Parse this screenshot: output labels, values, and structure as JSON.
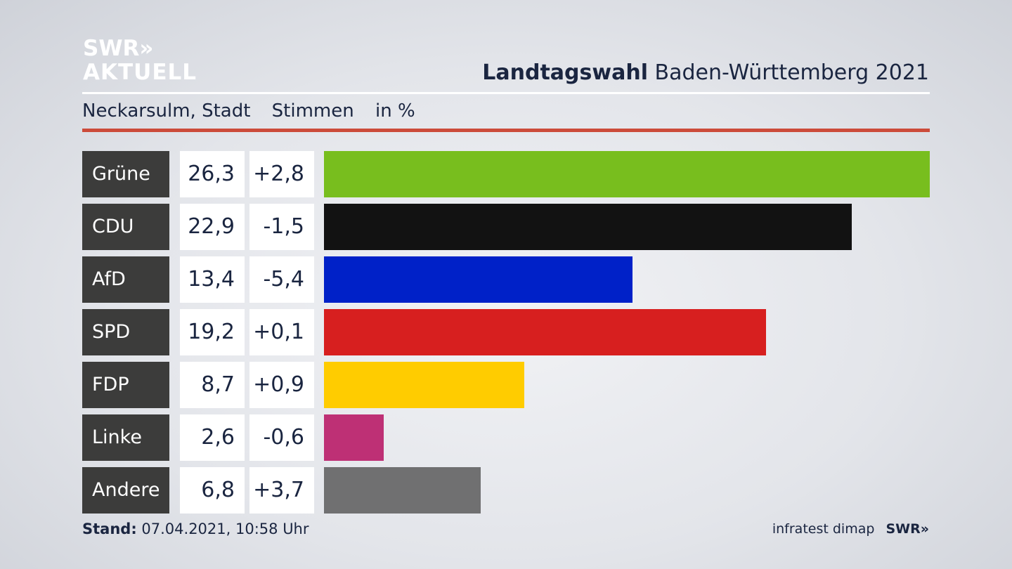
{
  "logo": {
    "line1": "SWR»",
    "line2": "AKTUELL"
  },
  "header": {
    "title_bold": "Landtagswahl",
    "title_rest": "Baden-Württemberg 2021"
  },
  "subtitle": {
    "place": "Neckarsulm, Stadt",
    "measure": "Stimmen",
    "unit": "in %"
  },
  "colors": {
    "accent_rule": "#cc4b3a",
    "label_bg": "#3c3c3b"
  },
  "chart_data": {
    "type": "bar",
    "orientation": "horizontal",
    "title": "Landtagswahl Baden-Württemberg 2021",
    "subtitle": "Neckarsulm, Stadt Stimmen in %",
    "categories": [
      "Grüne",
      "CDU",
      "AfD",
      "SPD",
      "FDP",
      "Linke",
      "Andere"
    ],
    "values": [
      26.3,
      22.9,
      13.4,
      19.2,
      8.7,
      2.6,
      6.8
    ],
    "value_labels": [
      "26,3",
      "22,9",
      "13,4",
      "19,2",
      "8,7",
      "2,6",
      "6,8"
    ],
    "change_labels": [
      "+2,8",
      "-1,5",
      "-5,4",
      "+0,1",
      "+0,9",
      "-0,6",
      "+3,7"
    ],
    "colors": [
      "#78be1e",
      "#121212",
      "#0021c8",
      "#d71f1f",
      "#ffcc00",
      "#be3075",
      "#707071"
    ],
    "xlim": [
      0,
      26.3
    ],
    "grid": false,
    "legend": "none"
  },
  "footer": {
    "stand_label": "Stand:",
    "stand_value": "07.04.2021, 10:58 Uhr",
    "source": "infratest dimap",
    "brand": "SWR»"
  }
}
